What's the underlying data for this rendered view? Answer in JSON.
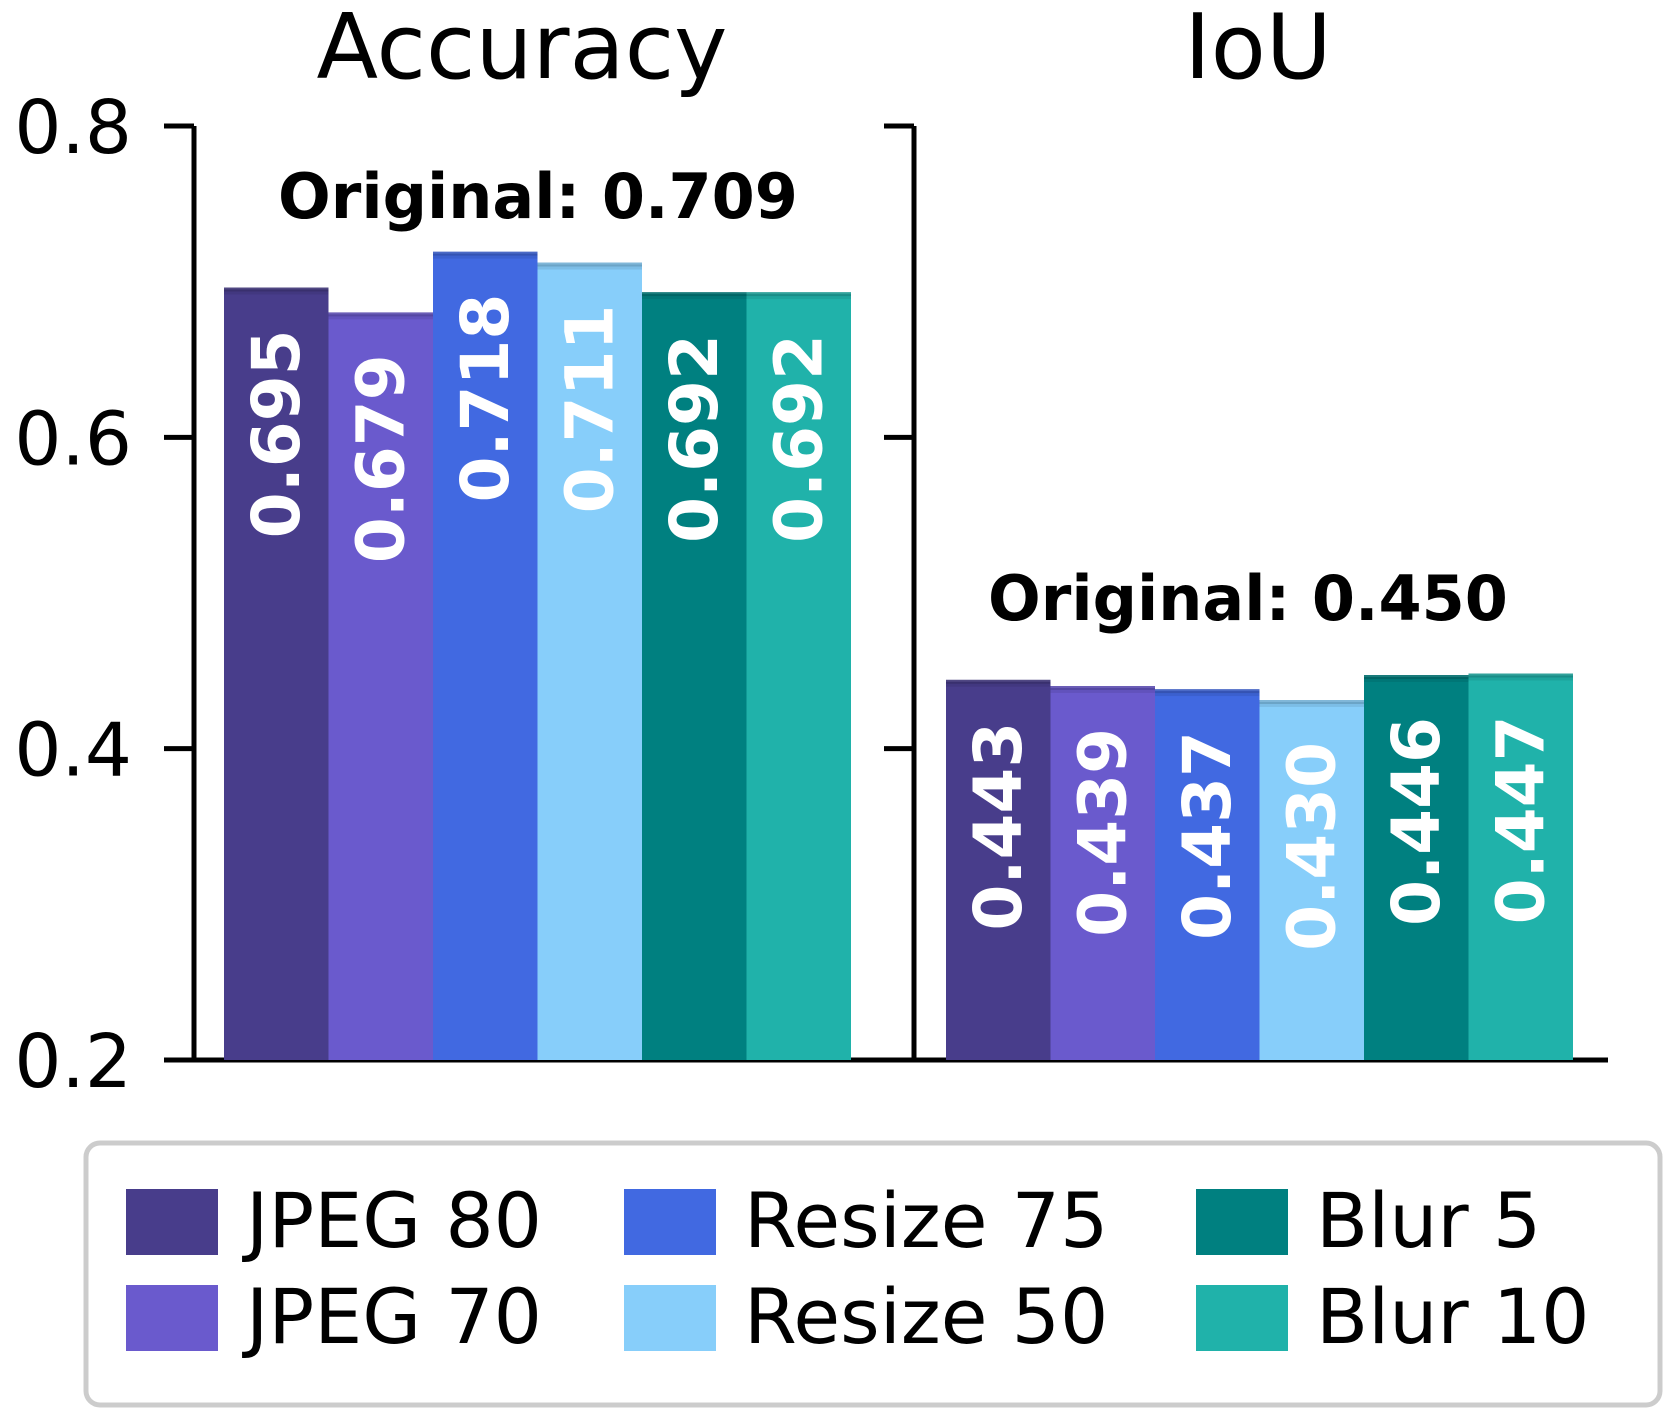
{
  "chart_data": {
    "type": "bar",
    "y_axis": {
      "ylim": [
        0.2,
        0.8
      ],
      "ticks": [
        "0.2",
        "0.4",
        "0.6",
        "0.8"
      ],
      "grid": false
    },
    "series": [
      {
        "name": "JPEG 80",
        "color": "#483D8B"
      },
      {
        "name": "JPEG 70",
        "color": "#6A5ACD"
      },
      {
        "name": "Resize 75",
        "color": "#4169E1"
      },
      {
        "name": "Resize 50",
        "color": "#87CEFA"
      },
      {
        "name": "Blur 5",
        "color": "#008080"
      },
      {
        "name": "Blur 10",
        "color": "#20B2AA"
      }
    ],
    "panels": [
      {
        "title": "Accuracy",
        "original_label": "Original: 0.709",
        "values": [
          0.695,
          0.679,
          0.718,
          0.711,
          0.692,
          0.692
        ],
        "value_labels": [
          "0.695",
          "0.679",
          "0.718",
          "0.711",
          "0.692",
          "0.692"
        ]
      },
      {
        "title": "IoU",
        "original_label": "Original: 0.450",
        "values": [
          0.443,
          0.439,
          0.437,
          0.43,
          0.446,
          0.447
        ],
        "value_labels": [
          "0.443",
          "0.439",
          "0.437",
          "0.430",
          "0.446",
          "0.447"
        ]
      }
    ],
    "legend": {
      "placement": "bottom",
      "columns": 3
    }
  }
}
